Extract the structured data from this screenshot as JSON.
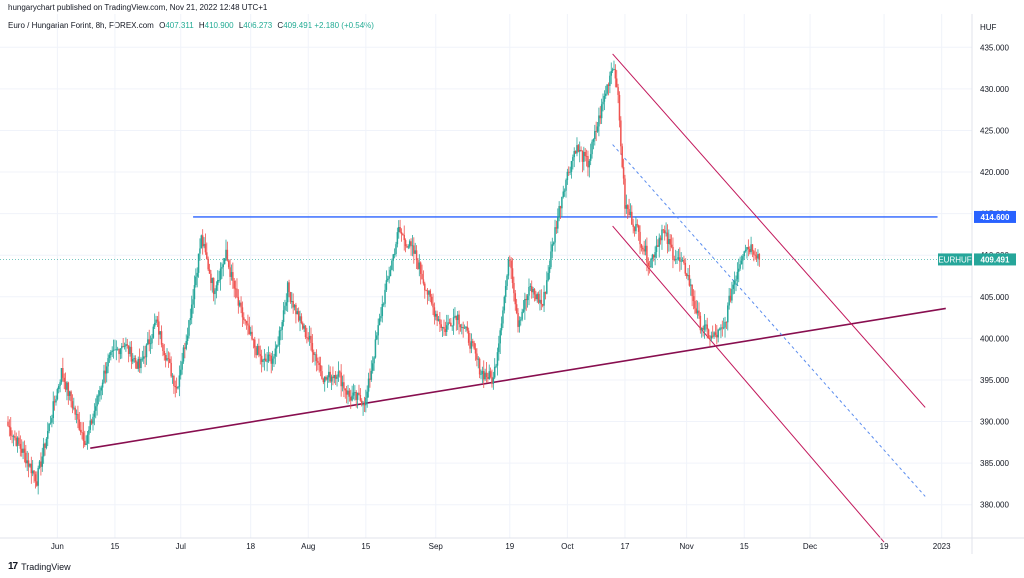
{
  "header": {
    "published": "hungarychart published on TradingView.com, Nov 21, 2022 12:48 UTC+1"
  },
  "legend": {
    "symbol": "Euro / Hungarian Forint, 8h, FOREX.com",
    "open_key": "O",
    "open": "407.311",
    "high_key": "H",
    "high": "410.900",
    "low_key": "L",
    "low": "406.273",
    "close_key": "C",
    "close": "409.491",
    "change": "+2.180 (+0.54%)"
  },
  "footer": {
    "logo": "17",
    "brand": "TradingView"
  },
  "colors": {
    "up": "#26a69a",
    "down": "#ef5350",
    "hline": "#2962ff",
    "trend": "#880e4f",
    "channel": "#c2185b",
    "mid": "#5b8def"
  },
  "chart_data": {
    "type": "candlestick",
    "currency_label": "HUF",
    "y_ticks": [
      "380.000",
      "385.000",
      "390.000",
      "395.000",
      "400.000",
      "405.000",
      "410.000",
      "415.000",
      "420.000",
      "425.000",
      "430.000",
      "435.000"
    ],
    "ylim": [
      376,
      439
    ],
    "x_ticks": [
      "Jun",
      "15",
      "Jul",
      "18",
      "Aug",
      "15",
      "Sep",
      "19",
      "Oct",
      "17",
      "Nov",
      "15",
      "Dec",
      "19",
      "2023"
    ],
    "price_labels": [
      {
        "name": "horizontal",
        "text": "414.600",
        "value": 414.6
      },
      {
        "name": "symbol",
        "symbol": "EURHUF",
        "text": "409.491",
        "value": 409.491
      }
    ],
    "anchors": [
      {
        "date": "May 20",
        "price": 389.5
      },
      {
        "date": "May 24",
        "price": 386
      },
      {
        "date": "May 27",
        "price": 383
      },
      {
        "date": "Jun 2",
        "price": 396
      },
      {
        "date": "Jun 6",
        "price": 390
      },
      {
        "date": "Jun 8",
        "price": 387.5
      },
      {
        "date": "Jun 13",
        "price": 397
      },
      {
        "date": "Jun 17",
        "price": 399.5
      },
      {
        "date": "Jun 21",
        "price": 396.5
      },
      {
        "date": "Jun 25",
        "price": 402
      },
      {
        "date": "Jun 28",
        "price": 397
      },
      {
        "date": "Jun 30",
        "price": 394
      },
      {
        "date": "Jul 3",
        "price": 402
      },
      {
        "date": "Jul 6",
        "price": 412
      },
      {
        "date": "Jul 9",
        "price": 406
      },
      {
        "date": "Jul 12",
        "price": 410
      },
      {
        "date": "Jul 15",
        "price": 404
      },
      {
        "date": "Jul 18",
        "price": 400
      },
      {
        "date": "Jul 21",
        "price": 397
      },
      {
        "date": "Jul 24",
        "price": 398
      },
      {
        "date": "Jul 27",
        "price": 406
      },
      {
        "date": "Jul 30",
        "price": 402
      },
      {
        "date": "Aug 2",
        "price": 399
      },
      {
        "date": "Aug 5",
        "price": 395
      },
      {
        "date": "Aug 8",
        "price": 396
      },
      {
        "date": "Aug 11",
        "price": 393
      },
      {
        "date": "Aug 15",
        "price": 392.5
      },
      {
        "date": "Aug 19",
        "price": 404
      },
      {
        "date": "Aug 23",
        "price": 413
      },
      {
        "date": "Aug 27",
        "price": 410
      },
      {
        "date": "Aug 31",
        "price": 404
      },
      {
        "date": "Sep 3",
        "price": 401
      },
      {
        "date": "Sep 6",
        "price": 403
      },
      {
        "date": "Sep 9",
        "price": 400
      },
      {
        "date": "Sep 12",
        "price": 396
      },
      {
        "date": "Sep 15",
        "price": 395
      },
      {
        "date": "Sep 19",
        "price": 410
      },
      {
        "date": "Sep 21",
        "price": 402
      },
      {
        "date": "Sep 24",
        "price": 406
      },
      {
        "date": "Sep 27",
        "price": 404
      },
      {
        "date": "Sep 30",
        "price": 413
      },
      {
        "date": "Oct 2",
        "price": 418
      },
      {
        "date": "Oct 5",
        "price": 423
      },
      {
        "date": "Oct 8",
        "price": 421
      },
      {
        "date": "Oct 11",
        "price": 427
      },
      {
        "date": "Oct 14",
        "price": 433
      },
      {
        "date": "Oct 15",
        "price": 431
      },
      {
        "date": "Oct 17",
        "price": 416
      },
      {
        "date": "Oct 20",
        "price": 413
      },
      {
        "date": "Oct 23",
        "price": 409
      },
      {
        "date": "Oct 26",
        "price": 413
      },
      {
        "date": "Oct 29",
        "price": 410
      },
      {
        "date": "Nov 1",
        "price": 408
      },
      {
        "date": "Nov 4",
        "price": 402
      },
      {
        "date": "Nov 7",
        "price": 400
      },
      {
        "date": "Nov 10",
        "price": 401
      },
      {
        "date": "Nov 12",
        "price": 406
      },
      {
        "date": "Nov 15",
        "price": 411
      },
      {
        "date": "Nov 17",
        "price": 411
      },
      {
        "date": "Nov 19",
        "price": 409.5
      }
    ],
    "drawings": [
      {
        "name": "horizontal-resistance",
        "from": {
          "date": "Jul 4",
          "price": 414.6
        },
        "to": {
          "date": "Jan 1",
          "price": 414.6
        },
        "color": "#2962ff"
      },
      {
        "name": "ascending-trendline",
        "from": {
          "date": "Jun 9",
          "price": 386.8
        },
        "to": {
          "date": "Jan 3",
          "price": 403.6
        },
        "color": "#880e4f"
      },
      {
        "name": "channel-upper",
        "from": {
          "date": "Oct 14",
          "price": 434.2
        },
        "to": {
          "date": "Dec 29",
          "price": 391.7
        },
        "color": "#c2185b"
      },
      {
        "name": "channel-lower",
        "from": {
          "date": "Oct 14",
          "price": 413.5
        },
        "to": {
          "date": "Dec 19",
          "price": 375.5
        },
        "color": "#c2185b"
      },
      {
        "name": "channel-mid",
        "from": {
          "date": "Oct 14",
          "price": 423.3
        },
        "to": {
          "date": "Dec 29",
          "price": 381
        },
        "color": "#5b8def",
        "dashed": true
      }
    ],
    "grid": true,
    "price_axis": "right",
    "time_axis": "bottom"
  }
}
